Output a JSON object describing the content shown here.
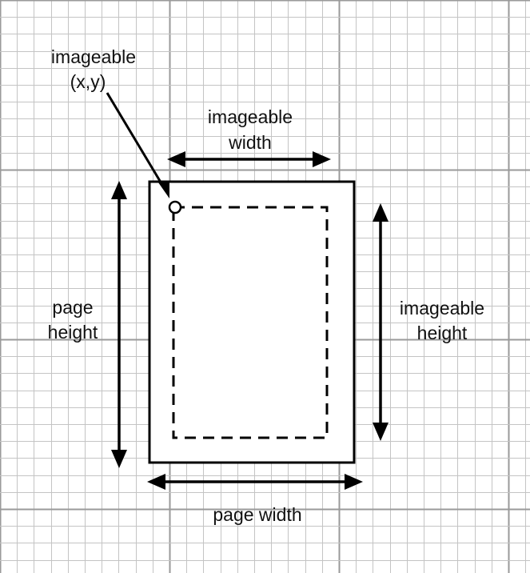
{
  "labels": {
    "imageable_xy_line1": "imageable",
    "imageable_xy_line2": "(x,y)",
    "imageable_width_line1": "imageable",
    "imageable_width_line2": "width",
    "page_height_line1": "page",
    "page_height_line2": "height",
    "imageable_height_line1": "imageable",
    "imageable_height_line2": "height",
    "page_width": "page width"
  },
  "colors": {
    "background": "#ffffff",
    "minor_grid": "#c4c4c4",
    "major_grid": "#9a9a9a",
    "ink": "#000000"
  }
}
